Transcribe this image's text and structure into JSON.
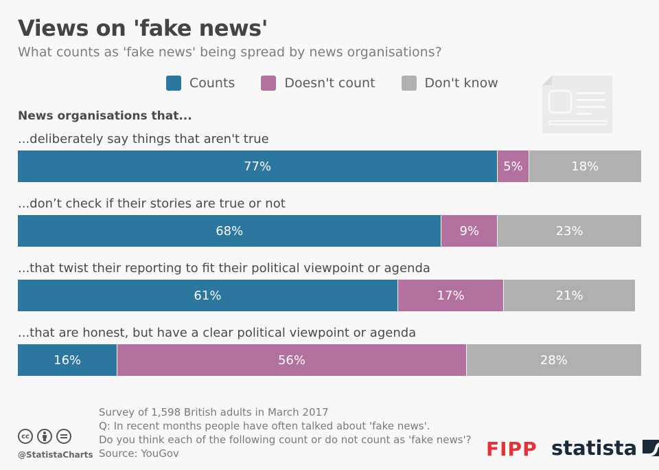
{
  "header": {
    "title": "Views on 'fake news'",
    "subtitle": "What counts as 'fake news' being spread by news organisations?"
  },
  "legend": [
    {
      "label": "Counts",
      "color": "#2c77a0"
    },
    {
      "label": "Doesn't count",
      "color": "#b2719f"
    },
    {
      "label": "Don't know",
      "color": "#b0b0b0"
    }
  ],
  "group_heading": "News organisations that...",
  "chart_data": {
    "type": "bar",
    "orientation": "horizontal",
    "stacked": true,
    "normalized_to": 100,
    "title": "Views on 'fake news'",
    "subtitle": "What counts as 'fake news' being spread by news organisations?",
    "group_heading": "News organisations that...",
    "categories": [
      "...deliberately say things that aren't true",
      "...don’t check if their stories are true or not",
      "...that twist their reporting to fit their political viewpoint or agenda",
      "...that are honest, but have a clear political viewpoint or agenda"
    ],
    "series": [
      {
        "name": "Counts",
        "color": "#2c77a0",
        "values": [
          77,
          68,
          61,
          16
        ]
      },
      {
        "name": "Doesn't count",
        "color": "#b2719f",
        "values": [
          5,
          9,
          17,
          56
        ]
      },
      {
        "name": "Don't know",
        "color": "#b0b0b0",
        "values": [
          18,
          23,
          21,
          28
        ]
      }
    ],
    "value_suffix": "%",
    "legend_position": "top-center",
    "grid": false
  },
  "footer": {
    "notes": [
      "Survey of 1,598 British adults in March 2017",
      "Q: In recent months people have often talked about 'fake news'.",
      "Do you think each of the following count or do not count as 'fake news'?",
      "Source: YouGov"
    ],
    "handle": "@StatistaCharts",
    "cc_icons": [
      "cc",
      "by",
      "nd"
    ],
    "partner_logo": "FIPP",
    "brand_logo": "statista"
  }
}
